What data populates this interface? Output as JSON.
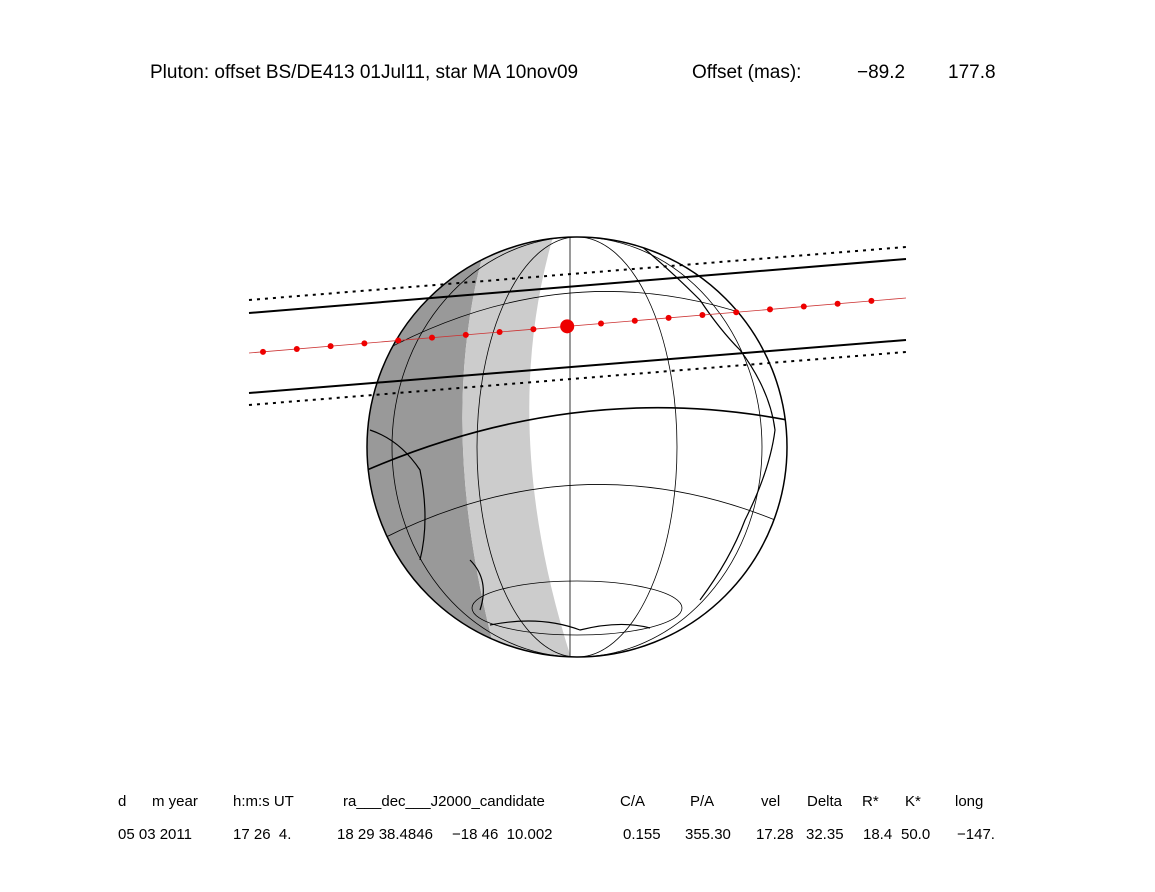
{
  "header": {
    "title": "Pluton: offset BS/DE413 01Jul11, star MA 10nov09",
    "offset_label": "Offset (mas):",
    "offset_values": [
      "−89.2",
      "177.8"
    ]
  },
  "table": {
    "columns": [
      "d",
      "m year",
      "h:m:s UT",
      "ra___dec___J2000_candidate",
      "C/A",
      "P/A",
      "vel",
      "Delta",
      "R*",
      "K*",
      "long"
    ],
    "row": [
      "05 03 2011",
      "17 26  4.",
      "18 29 38.4846",
      "−18 46  10.002",
      "0.155",
      "355.30",
      "17.28",
      "32.35",
      "18.4",
      "50.0",
      "−147."
    ]
  }
}
